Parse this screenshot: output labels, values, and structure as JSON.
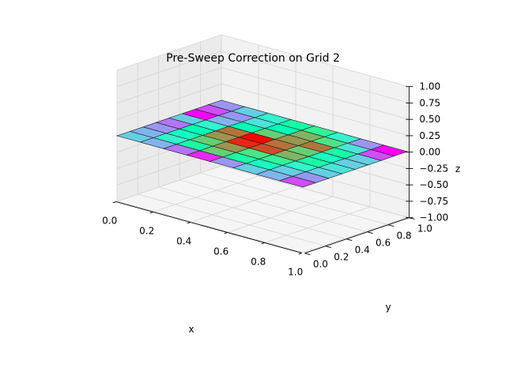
{
  "chart_data": {
    "type": "surface3d",
    "title": "Pre-Sweep Correction on Grid 2",
    "xlabel": "x",
    "ylabel": "y",
    "zlabel": "z",
    "xlim": [
      0,
      1
    ],
    "ylim": [
      0,
      1
    ],
    "zlim": [
      -1,
      1
    ],
    "x_ticks": [
      "0.0",
      "0.2",
      "0.4",
      "0.6",
      "0.8",
      "1.0"
    ],
    "y_ticks": [
      "0.0",
      "0.2",
      "0.4",
      "0.6",
      "0.8",
      "1.0"
    ],
    "z_ticks": [
      "−1.00",
      "−0.75",
      "−0.50",
      "−0.25",
      "0.00",
      "0.25",
      "0.50",
      "0.75",
      "1.00"
    ],
    "colormap": "rainbow",
    "grid": true,
    "x": [
      0,
      0.125,
      0.25,
      0.375,
      0.5,
      0.625,
      0.75,
      0.875,
      1.0
    ],
    "y": [
      0,
      0.125,
      0.25,
      0.375,
      0.5,
      0.625,
      0.75,
      0.875,
      1.0
    ],
    "z_note": "surface is flat at z ≈ 0; cell colour shows the correction value",
    "cell_values": [
      [
        0.3,
        0.25,
        0.15,
        0.05,
        0.2,
        0.3,
        0.25,
        0.1
      ],
      [
        0.25,
        0.4,
        0.55,
        0.7,
        0.55,
        0.45,
        0.3,
        0.2
      ],
      [
        0.2,
        0.45,
        0.7,
        0.8,
        0.65,
        0.6,
        0.4,
        0.3
      ],
      [
        0.15,
        0.5,
        0.8,
        0.95,
        0.9,
        0.75,
        0.55,
        0.35
      ],
      [
        0.3,
        0.4,
        0.85,
        1.0,
        0.85,
        0.7,
        0.45,
        0.3
      ],
      [
        0.0,
        0.25,
        0.5,
        0.7,
        0.8,
        0.85,
        0.55,
        0.3
      ],
      [
        0.1,
        0.2,
        0.35,
        0.5,
        0.75,
        0.65,
        0.35,
        0.1
      ],
      [
        0.2,
        0.3,
        0.4,
        0.55,
        0.6,
        0.4,
        0.2,
        0.0
      ]
    ]
  }
}
